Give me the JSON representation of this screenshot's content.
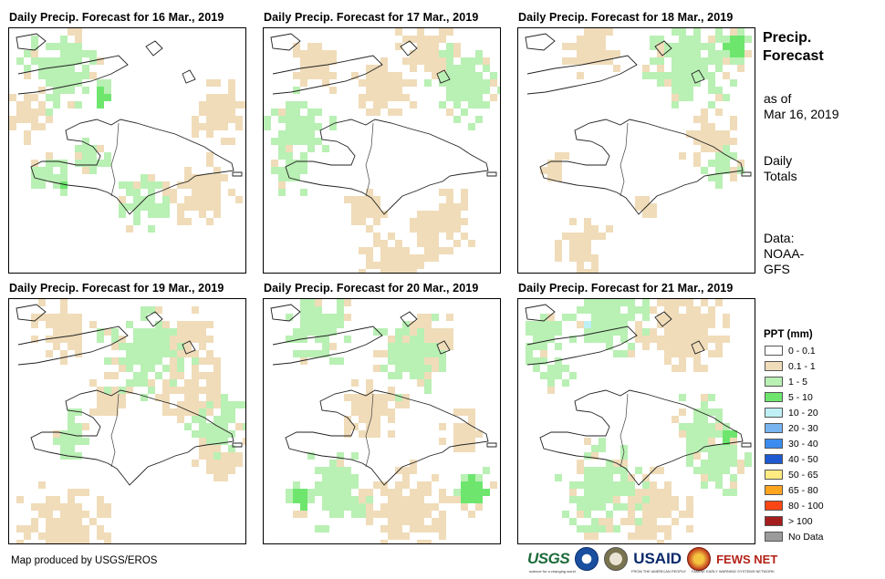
{
  "panels": [
    {
      "title": "Daily Precip. Forecast for 16 Mar., 2019",
      "dominant": "Scattered 1 - 5 mm over Cuba and along the southern Hispaniola coast, small 5 - 10 mm areas"
    },
    {
      "title": "Daily Precip. Forecast for 17 Mar., 2019",
      "dominant": "1 - 5 mm over southwest Haiti and the northeast ocean, 0.1 - 1 mm elsewhere"
    },
    {
      "title": "Daily Precip. Forecast for 18 Mar., 2019",
      "dominant": "1 - 5 mm over the northeast ocean and eastern Dominican Republic"
    },
    {
      "title": "Daily Precip. Forecast for 19 Mar., 2019",
      "dominant": "Mixed 0.1 - 1 and 1 - 5 mm across Cuba and Hispaniola"
    },
    {
      "title": "Daily Precip. Forecast for 20 Mar., 2019",
      "dominant": "1 - 5 mm over central ocean, 5 - 10 mm patches in the south"
    },
    {
      "title": "Daily Precip. Forecast for 21 Mar., 2019",
      "dominant": "Widespread 1 - 5 mm over northern and southern areas, isolated 10 - 20 mm"
    }
  ],
  "side": {
    "title_line1": "Precip.",
    "title_line2": "Forecast",
    "asof_line1": "as of",
    "asof_line2": "Mar 16, 2019",
    "totals_line1": "Daily",
    "totals_line2": "Totals",
    "data_line1": "Data:",
    "data_line2": "NOAA-",
    "data_line3": "GFS"
  },
  "legend": {
    "title": "PPT (mm)",
    "classes": [
      {
        "label": "0 - 0.1",
        "color": "#ffffff"
      },
      {
        "label": "0.1 - 1",
        "color": "#f0dcb9"
      },
      {
        "label": "1 - 5",
        "color": "#b9f0b4"
      },
      {
        "label": "5 - 10",
        "color": "#6ee66e"
      },
      {
        "label": "10 - 20",
        "color": "#bef0f5"
      },
      {
        "label": "20 - 30",
        "color": "#78b4f0"
      },
      {
        "label": "30 - 40",
        "color": "#3c8cf0"
      },
      {
        "label": "40 - 50",
        "color": "#1e5ad2"
      },
      {
        "label": "50 - 65",
        "color": "#ffeb82"
      },
      {
        "label": "65 - 80",
        "color": "#ffa51e"
      },
      {
        "label": "80 - 100",
        "color": "#fa4614"
      },
      {
        "label": "> 100",
        "color": "#a51e1e"
      },
      {
        "label": "No Data",
        "color": "#9b9b9b"
      }
    ]
  },
  "footer": {
    "credit": "Map produced by USGS/EROS"
  },
  "logos": {
    "usgs": "USGS",
    "usgs_tagline": "science for a changing world",
    "usaid": "USAID",
    "usaid_tagline": "FROM THE AMERICAN PEOPLE",
    "fews": "FEWS NET",
    "fews_tagline": "FAMINE EARLY WARNING SYSTEMS NETWORK"
  }
}
